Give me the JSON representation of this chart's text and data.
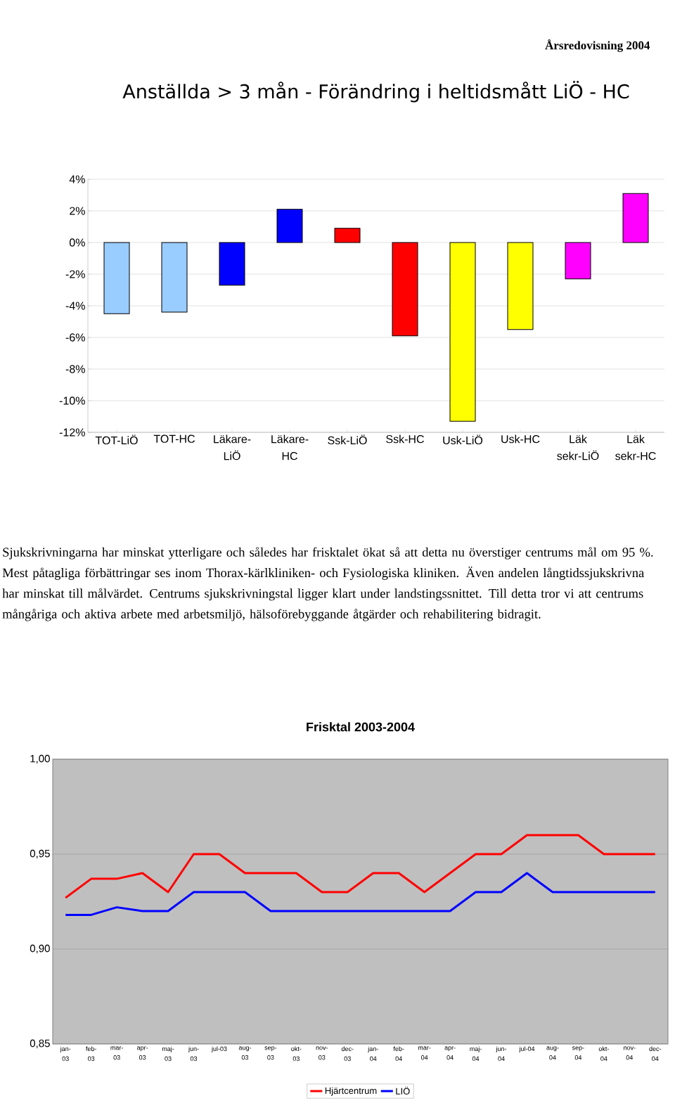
{
  "chart_data": [
    {
      "type": "bar",
      "title": "Anställda > 3 mån - Förändring i heltidsmått LiÖ - HC",
      "categories": [
        "TOT-LiÖ",
        "TOT-HC",
        "Läkare-LiÖ",
        "Läkare-HC",
        "Ssk-LiÖ",
        "Ssk-HC",
        "Usk-LiÖ",
        "Usk-HC",
        "Läk sekr-LiÖ",
        "Läk sekr-HC"
      ],
      "values": [
        -4.5,
        -4.4,
        -2.7,
        2.1,
        0.9,
        -5.9,
        -11.3,
        -5.5,
        -2.3,
        3.1
      ],
      "colors": [
        "#99ccff",
        "#99ccff",
        "#0000ff",
        "#0000ff",
        "#ff0000",
        "#ff0000",
        "#ffff00",
        "#ffff00",
        "#ff00ff",
        "#ff00ff"
      ],
      "ylim": [
        -12,
        4
      ],
      "yticks": [
        {
          "value": 4,
          "label": "4%"
        },
        {
          "value": 2,
          "label": "2%"
        },
        {
          "value": 0,
          "label": "0%"
        },
        {
          "value": -2,
          "label": "-2%"
        },
        {
          "value": -4,
          "label": "-4%"
        },
        {
          "value": -6,
          "label": "-6%"
        },
        {
          "value": -8,
          "label": "-8%"
        },
        {
          "value": -10,
          "label": "-10%"
        },
        {
          "value": -12,
          "label": "-12%"
        }
      ],
      "grid": "y",
      "annotations": [
        "Årsredovisning 2004",
        "Sjukskrivningarna har minskat ytterligare och således har frisktalet ökat så att detta nu överstiger centrums mål om 95 %. Mest påtagliga förbättringar ses inom Thorax-kärlkliniken- och Fysiologiska kliniken. Även andelen långtidssjukskrivna har minskat till målvärdet. Centrums sjukskrivningstal ligger klart under landstingssnittet. Till detta tror vi att centrums mångåriga och aktiva arbete med arbetsmiljö, hälsoförebyggande åtgärder och rehabilitering bidragit."
      ]
    },
    {
      "type": "line",
      "title": "Frisktal 2003-2004",
      "categories": [
        "jan-03",
        "feb-03",
        "mar-03",
        "apr-03",
        "maj-03",
        "jun-03",
        "jul-03",
        "aug-03",
        "sep-03",
        "okt-03",
        "nov-03",
        "dec-03",
        "jan-04",
        "feb-04",
        "mar-04",
        "apr-04",
        "maj-04",
        "jun-04",
        "jul-04",
        "aug-04",
        "sep-04",
        "okt-04",
        "nov-04",
        "dec-04"
      ],
      "series": [
        {
          "name": "Hjärtcentrum",
          "color": "#ff0000",
          "values": [
            0.927,
            0.937,
            0.937,
            0.94,
            0.93,
            0.95,
            0.95,
            0.94,
            0.94,
            0.94,
            0.93,
            0.93,
            0.94,
            0.94,
            0.93,
            0.94,
            0.95,
            0.95,
            0.96,
            0.96,
            0.96,
            0.95,
            0.95,
            0.95
          ]
        },
        {
          "name": "LIÖ",
          "color": "#0000ff",
          "values": [
            0.918,
            0.918,
            0.922,
            0.92,
            0.92,
            0.93,
            0.93,
            0.93,
            0.92,
            0.92,
            0.92,
            0.92,
            0.92,
            0.92,
            0.92,
            0.92,
            0.93,
            0.93,
            0.94,
            0.93,
            0.93,
            0.93,
            0.93,
            0.93
          ]
        }
      ],
      "ylim": [
        0.85,
        1.0
      ],
      "yticks": [
        {
          "value": 1.0,
          "label": "1,00"
        },
        {
          "value": 0.95,
          "label": "0,95"
        },
        {
          "value": 0.9,
          "label": "0,90"
        },
        {
          "value": 0.85,
          "label": "0,85"
        }
      ],
      "grid": "y",
      "legend": "bottom",
      "marker": "none",
      "line_style": "solid"
    }
  ]
}
